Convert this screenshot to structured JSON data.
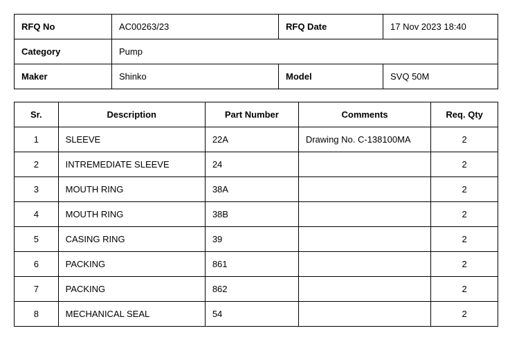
{
  "header": {
    "rfq_no_label": "RFQ No",
    "rfq_no_value": "AC00263/23",
    "rfq_date_label": "RFQ Date",
    "rfq_date_value": "17 Nov 2023 18:40",
    "category_label": "Category",
    "category_value": "Pump",
    "maker_label": "Maker",
    "maker_value": "Shinko",
    "model_label": "Model",
    "model_value": "SVQ 50M"
  },
  "items_header": {
    "sr": "Sr.",
    "description": "Description",
    "part_number": "Part Number",
    "comments": "Comments",
    "req_qty": "Req. Qty"
  },
  "items": [
    {
      "sr": "1",
      "description": "SLEEVE",
      "part_number": "22A",
      "comments": "Drawing No. C-138100MA",
      "req_qty": "2"
    },
    {
      "sr": "2",
      "description": "INTREMEDIATE SLEEVE",
      "part_number": "24",
      "comments": "",
      "req_qty": "2"
    },
    {
      "sr": "3",
      "description": "MOUTH RING",
      "part_number": "38A",
      "comments": "",
      "req_qty": "2"
    },
    {
      "sr": "4",
      "description": "MOUTH RING",
      "part_number": "38B",
      "comments": "",
      "req_qty": "2"
    },
    {
      "sr": "5",
      "description": "CASING RING",
      "part_number": "39",
      "comments": "",
      "req_qty": "2"
    },
    {
      "sr": "6",
      "description": "PACKING",
      "part_number": "861",
      "comments": "",
      "req_qty": "2"
    },
    {
      "sr": "7",
      "description": "PACKING",
      "part_number": "862",
      "comments": "",
      "req_qty": "2"
    },
    {
      "sr": "8",
      "description": "MECHANICAL SEAL",
      "part_number": "54",
      "comments": "",
      "req_qty": "2"
    }
  ]
}
